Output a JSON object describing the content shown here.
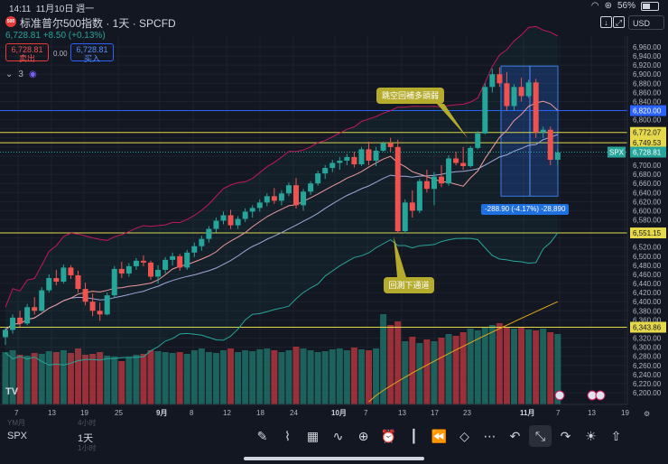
{
  "status_bar": {
    "time": "14:11",
    "date": "11月10日 週一",
    "battery": "56%"
  },
  "header": {
    "logo_text": "500",
    "title": "标准普尔500指数 · 1天 · SPCFD",
    "last_price": "6,728.81",
    "change": "+8.50 (+0.13%)",
    "sell_price": "6,728.81",
    "sell_label": "卖出",
    "spread": "0.00",
    "buy_price": "6,728.81",
    "buy_label": "买入",
    "indicator_count": "3",
    "currency": "USD"
  },
  "annotations": {
    "callout_top": "跳空回補多頭弱",
    "callout_bottom": "回測下通道",
    "measure": "-288.90 (-4.17%) -28,890"
  },
  "footer": {
    "symbol": "SPX",
    "interval": "1天",
    "ghost_top": "YM月",
    "ghost_mid": "4小时",
    "ghost_bottom": "1小时"
  },
  "toolbar_icons": [
    "pen-icon",
    "chart-type-icon",
    "templates-icon",
    "indicators-icon",
    "add-icon",
    "alert-icon",
    "candles-icon",
    "replay-icon",
    "layers-icon",
    "more-icon",
    "undo-icon",
    "fullscreen-icon",
    "redo-icon",
    "idea-icon",
    "share-icon"
  ],
  "colors": {
    "up": "#26a69a",
    "down": "#ef5350",
    "hline_yellow": "#e6d84b",
    "hline_blue": "#2962ff",
    "bg": "#131722"
  },
  "chart_data": {
    "type": "candlestick",
    "symbol": "SPX",
    "y_range": [
      6180,
      6980
    ],
    "y_ticks": [
      6200,
      6220,
      6240,
      6260,
      6280,
      6300,
      6320,
      6340,
      6360,
      6380,
      6400,
      6420,
      6440,
      6460,
      6480,
      6500,
      6520,
      6540,
      6560,
      6580,
      6600,
      6620,
      6640,
      6660,
      6680,
      6700,
      6720,
      6740,
      6760,
      6780,
      6800,
      6820,
      6840,
      6860,
      6880,
      6900,
      6920,
      6940,
      6960
    ],
    "x_labels": [
      "7",
      "13",
      "19",
      "25",
      "9月",
      "8",
      "12",
      "18",
      "24",
      "10月",
      "7",
      "13",
      "17",
      "23",
      "11月",
      "7",
      "13",
      "19"
    ],
    "price_labels": [
      {
        "value": 6820.0,
        "text": "6,820.00",
        "kind": "blue"
      },
      {
        "value": 6772.07,
        "text": "6,772.07",
        "kind": "yellow"
      },
      {
        "value": 6749.53,
        "text": "6,749.53",
        "kind": "yellow"
      },
      {
        "value": 6728.81,
        "text": "6,728.81",
        "kind": "last",
        "tag": "SPX"
      },
      {
        "value": 6551.15,
        "text": "6,551.15",
        "kind": "yellow"
      },
      {
        "value": 6343.86,
        "text": "6,343.86",
        "kind": "yellow"
      }
    ],
    "candles": [
      [
        6322,
        6345,
        6305,
        6338
      ],
      [
        6338,
        6372,
        6330,
        6365
      ],
      [
        6365,
        6380,
        6345,
        6352
      ],
      [
        6352,
        6395,
        6348,
        6388
      ],
      [
        6388,
        6410,
        6372,
        6380
      ],
      [
        6380,
        6432,
        6378,
        6425
      ],
      [
        6425,
        6460,
        6420,
        6452
      ],
      [
        6452,
        6470,
        6436,
        6444
      ],
      [
        6444,
        6482,
        6440,
        6475
      ],
      [
        6475,
        6480,
        6450,
        6458
      ],
      [
        6458,
        6468,
        6420,
        6428
      ],
      [
        6428,
        6442,
        6392,
        6400
      ],
      [
        6400,
        6418,
        6368,
        6380
      ],
      [
        6380,
        6398,
        6358,
        6372
      ],
      [
        6372,
        6420,
        6370,
        6414
      ],
      [
        6414,
        6478,
        6410,
        6472
      ],
      [
        6472,
        6488,
        6452,
        6462
      ],
      [
        6462,
        6485,
        6455,
        6478
      ],
      [
        6478,
        6496,
        6470,
        6490
      ],
      [
        6490,
        6502,
        6478,
        6486
      ],
      [
        6486,
        6490,
        6448,
        6455
      ],
      [
        6455,
        6480,
        6440,
        6470
      ],
      [
        6470,
        6498,
        6462,
        6492
      ],
      [
        6492,
        6508,
        6480,
        6500
      ],
      [
        6500,
        6505,
        6468,
        6475
      ],
      [
        6475,
        6514,
        6470,
        6508
      ],
      [
        6508,
        6530,
        6498,
        6522
      ],
      [
        6522,
        6545,
        6512,
        6538
      ],
      [
        6538,
        6566,
        6530,
        6560
      ],
      [
        6560,
        6585,
        6552,
        6578
      ],
      [
        6578,
        6598,
        6570,
        6590
      ],
      [
        6590,
        6602,
        6560,
        6568
      ],
      [
        6568,
        6588,
        6560,
        6582
      ],
      [
        6582,
        6605,
        6575,
        6598
      ],
      [
        6598,
        6612,
        6585,
        6606
      ],
      [
        6606,
        6625,
        6598,
        6618
      ],
      [
        6618,
        6638,
        6610,
        6632
      ],
      [
        6632,
        6650,
        6615,
        6622
      ],
      [
        6622,
        6645,
        6612,
        6638
      ],
      [
        6638,
        6662,
        6632,
        6656
      ],
      [
        6656,
        6672,
        6605,
        6612
      ],
      [
        6612,
        6648,
        6600,
        6642
      ],
      [
        6642,
        6665,
        6635,
        6660
      ],
      [
        6660,
        6688,
        6655,
        6682
      ],
      [
        6682,
        6700,
        6670,
        6694
      ],
      [
        6694,
        6712,
        6685,
        6705
      ],
      [
        6705,
        6718,
        6690,
        6710
      ],
      [
        6710,
        6725,
        6700,
        6718
      ],
      [
        6718,
        6730,
        6695,
        6702
      ],
      [
        6702,
        6740,
        6698,
        6735
      ],
      [
        6735,
        6752,
        6700,
        6710
      ],
      [
        6710,
        6740,
        6698,
        6732
      ],
      [
        6732,
        6752,
        6730,
        6748
      ],
      [
        6748,
        6760,
        6730,
        6740
      ],
      [
        6740,
        6756,
        6550,
        6555
      ],
      [
        6555,
        6625,
        6550,
        6618
      ],
      [
        6618,
        6645,
        6585,
        6600
      ],
      [
        6600,
        6670,
        6595,
        6665
      ],
      [
        6665,
        6690,
        6640,
        6648
      ],
      [
        6648,
        6685,
        6612,
        6675
      ],
      [
        6675,
        6700,
        6652,
        6660
      ],
      [
        6660,
        6722,
        6655,
        6715
      ],
      [
        6715,
        6730,
        6700,
        6705
      ],
      [
        6705,
        6740,
        6690,
        6698
      ],
      [
        6698,
        6742,
        6695,
        6738
      ],
      [
        6738,
        6775,
        6735,
        6770
      ],
      [
        6770,
        6880,
        6768,
        6872
      ],
      [
        6872,
        6912,
        6860,
        6900
      ],
      [
        6900,
        6915,
        6872,
        6880
      ],
      [
        6880,
        6905,
        6820,
        6830
      ],
      [
        6830,
        6878,
        6820,
        6872
      ],
      [
        6872,
        6892,
        6840,
        6852
      ],
      [
        6852,
        6888,
        6848,
        6882
      ],
      [
        6882,
        6890,
        6760,
        6772
      ],
      [
        6772,
        6785,
        6760,
        6778
      ],
      [
        6778,
        6785,
        6700,
        6712
      ],
      [
        6712,
        6736,
        6700,
        6728
      ]
    ],
    "volume": [
      58,
      60,
      55,
      54,
      57,
      56,
      59,
      58,
      60,
      57,
      62,
      55,
      56,
      58,
      54,
      53,
      48,
      52,
      55,
      56,
      60,
      59,
      58,
      57,
      58,
      56,
      60,
      62,
      58,
      57,
      60,
      62,
      58,
      60,
      59,
      61,
      62,
      60,
      58,
      60,
      64,
      62,
      60,
      58,
      59,
      61,
      62,
      60,
      63,
      61,
      60,
      62,
      100,
      88,
      92,
      70,
      75,
      68,
      72,
      70,
      74,
      78,
      76,
      80,
      84,
      82,
      86,
      88,
      90,
      86,
      84,
      85,
      83,
      82,
      84,
      80,
      78
    ],
    "bollinger": {
      "upper_start": 6400,
      "upper_end": 6925,
      "lower_start": 6250,
      "lower_end": 6580,
      "mid_start": 6320,
      "mid_end": 6740
    },
    "moving_average_start": 6180,
    "moving_average_end": 6400
  }
}
